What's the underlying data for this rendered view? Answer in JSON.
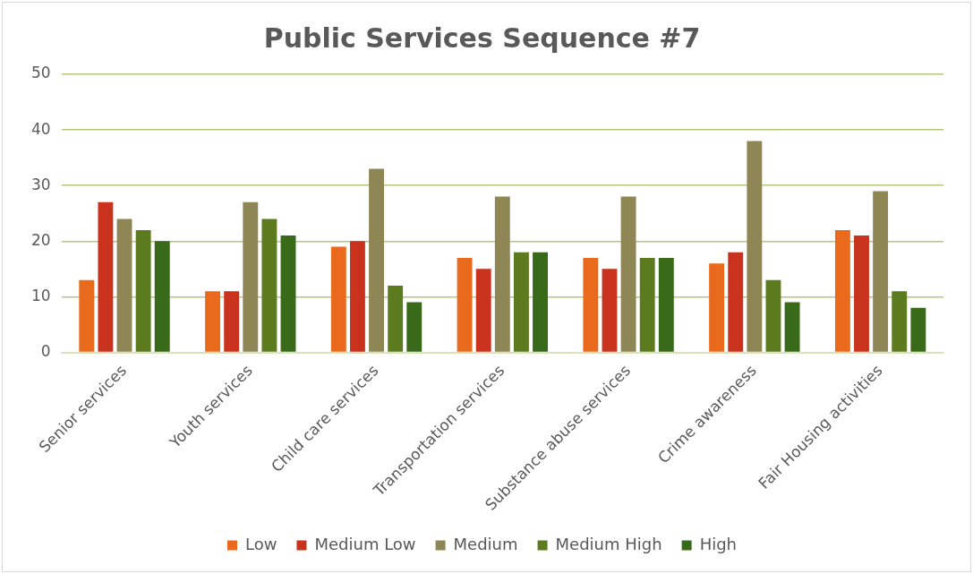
{
  "chart_data": {
    "type": "bar",
    "title": "Public Services Sequence #7",
    "categories": [
      "Senior services",
      "Youth services",
      "Child care services",
      "Transportation services",
      "Substance abuse services",
      "Crime awareness",
      "Fair Housing activities"
    ],
    "series": [
      {
        "name": "Low",
        "color": "#e96a1c",
        "values": [
          13,
          11,
          19,
          17,
          17,
          16,
          22
        ]
      },
      {
        "name": "Medium Low",
        "color": "#c9321d",
        "values": [
          27,
          11,
          20,
          15,
          15,
          18,
          21
        ]
      },
      {
        "name": "Medium",
        "color": "#8f8656",
        "values": [
          24,
          27,
          33,
          28,
          28,
          38,
          29
        ]
      },
      {
        "name": "Medium High",
        "color": "#5c7a1e",
        "values": [
          22,
          24,
          12,
          18,
          17,
          13,
          11
        ]
      },
      {
        "name": "High",
        "color": "#386a1a",
        "values": [
          20,
          21,
          9,
          18,
          17,
          9,
          8
        ]
      }
    ],
    "ylim": [
      0,
      50
    ],
    "yticks": [
      0,
      10,
      20,
      30,
      40,
      50
    ],
    "grid": "y",
    "legend": "bottom"
  }
}
